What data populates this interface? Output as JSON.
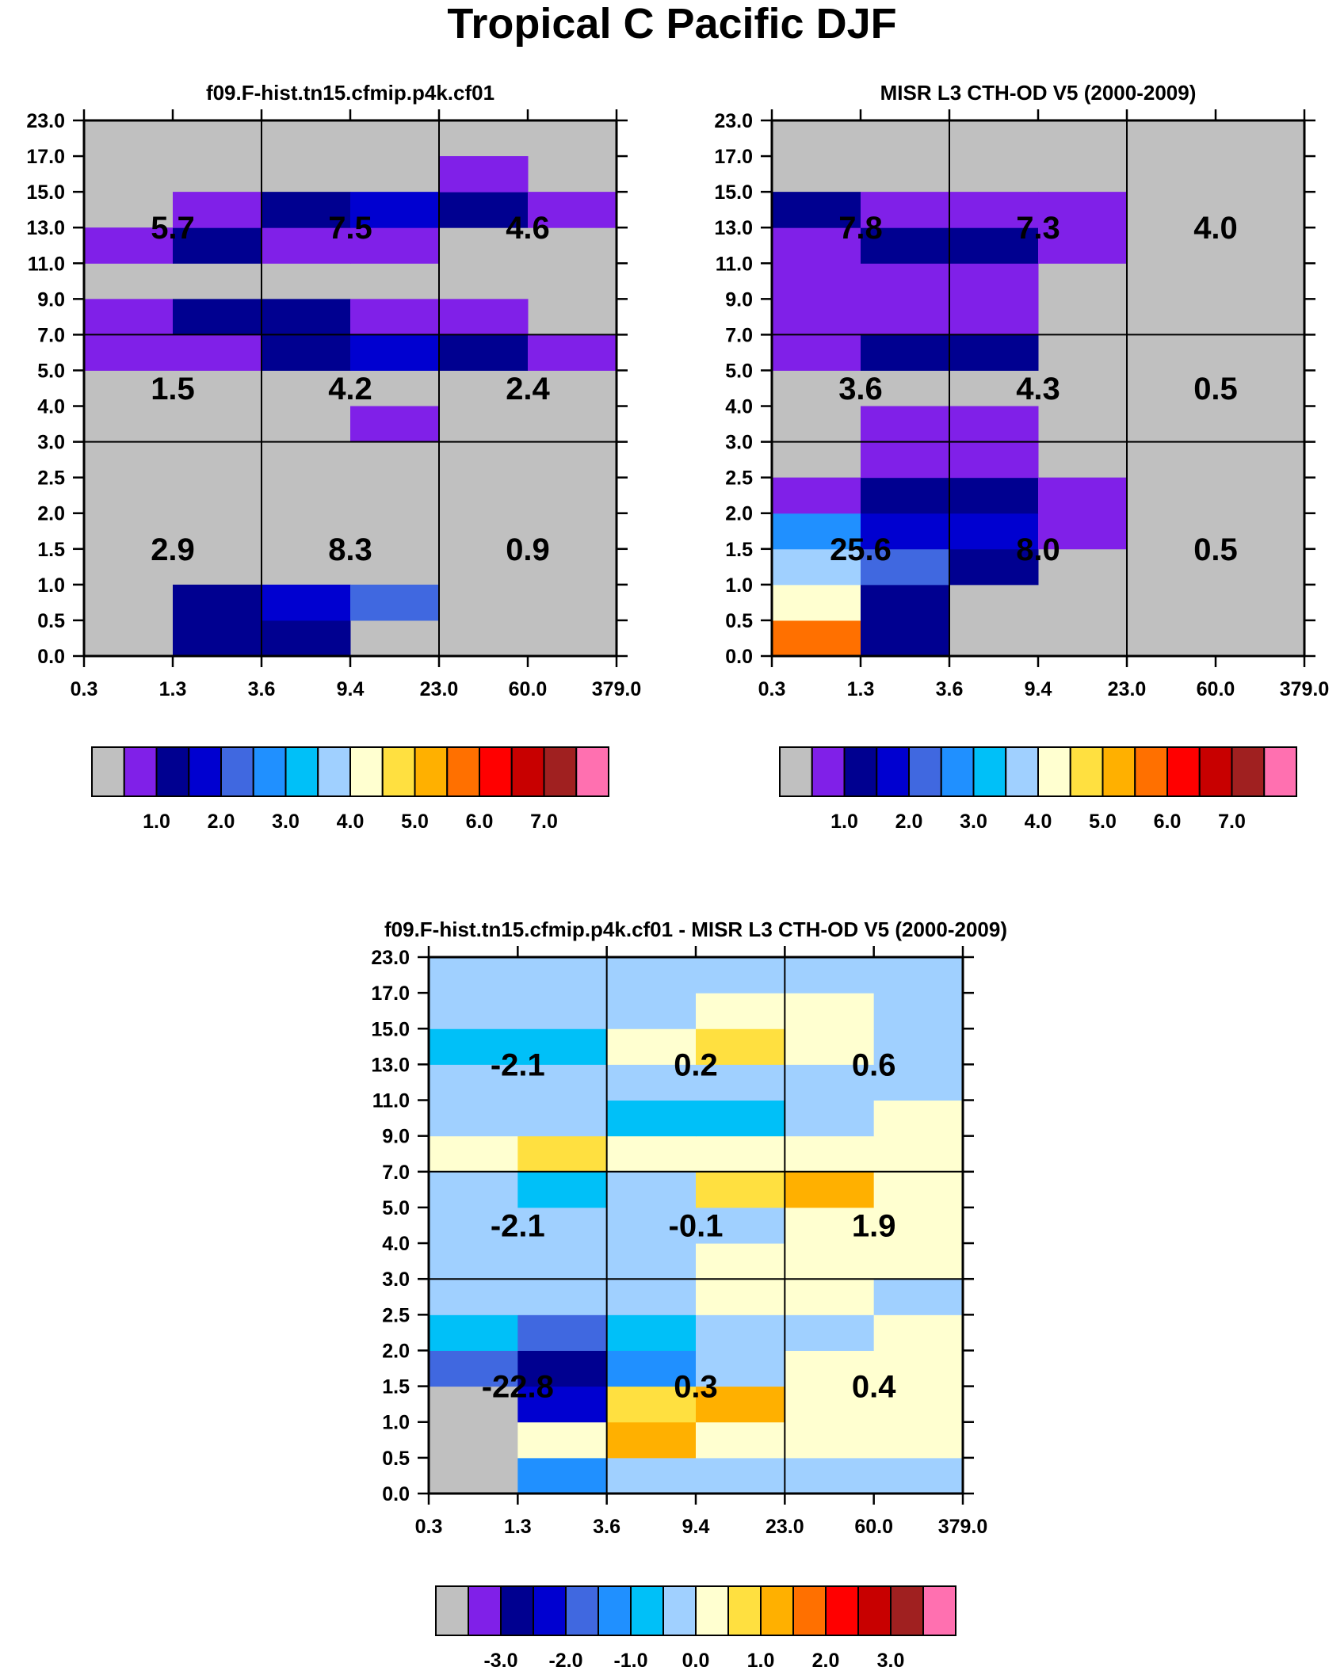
{
  "figure_title": "Tropical C Pacific DJF",
  "chart_data": [
    {
      "type": "heatmap",
      "title": "f09.F-hist.tn15.cfmip.p4k.cf01",
      "x_ticks": [
        "0.3",
        "1.3",
        "3.6",
        "9.4",
        "23.0",
        "60.0",
        "379.0"
      ],
      "y_ticks": [
        "0.0",
        "0.5",
        "1.0",
        "1.5",
        "2.0",
        "2.5",
        "3.0",
        "4.0",
        "5.0",
        "7.0",
        "9.0",
        "11.0",
        "13.0",
        "15.0",
        "17.0",
        "23.0"
      ],
      "grid_rows": [
        [
          null,
          2,
          2,
          null,
          null,
          null
        ],
        [
          null,
          2,
          3,
          4,
          null,
          null
        ],
        [
          null,
          null,
          null,
          null,
          null,
          null
        ],
        [
          null,
          null,
          null,
          null,
          null,
          null
        ],
        [
          null,
          null,
          null,
          null,
          null,
          null
        ],
        [
          null,
          null,
          null,
          null,
          null,
          null
        ],
        [
          null,
          null,
          null,
          1,
          null,
          null
        ],
        [
          null,
          null,
          null,
          null,
          null,
          null
        ],
        [
          1,
          1,
          2,
          3,
          2,
          1
        ],
        [
          1,
          2,
          2,
          1,
          1,
          null
        ],
        [
          null,
          null,
          null,
          null,
          null,
          null
        ],
        [
          1,
          2,
          1,
          1,
          null,
          null
        ],
        [
          null,
          1,
          2,
          3,
          2,
          1
        ],
        [
          null,
          null,
          null,
          null,
          1,
          null
        ],
        [
          null,
          null,
          null,
          null,
          null,
          null
        ]
      ],
      "region_labels": [
        {
          "value": "2.9",
          "col": 0,
          "row": 0
        },
        {
          "value": "8.3",
          "col": 1,
          "row": 0
        },
        {
          "value": "0.9",
          "col": 2,
          "row": 0
        },
        {
          "value": "1.5",
          "col": 0,
          "row": 1
        },
        {
          "value": "4.2",
          "col": 1,
          "row": 1
        },
        {
          "value": "2.4",
          "col": 2,
          "row": 1
        },
        {
          "value": "5.7",
          "col": 0,
          "row": 2
        },
        {
          "value": "7.5",
          "col": 1,
          "row": 2
        },
        {
          "value": "4.6",
          "col": 2,
          "row": 2
        }
      ]
    },
    {
      "type": "heatmap",
      "title": "MISR L3 CTH-OD V5 (2000-2009)",
      "x_ticks": [
        "0.3",
        "1.3",
        "3.6",
        "9.4",
        "23.0",
        "60.0",
        "379.0"
      ],
      "y_ticks": [
        "0.0",
        "0.5",
        "1.0",
        "1.5",
        "2.0",
        "2.5",
        "3.0",
        "4.0",
        "5.0",
        "7.0",
        "9.0",
        "11.0",
        "13.0",
        "15.0",
        "17.0",
        "23.0"
      ],
      "grid_rows": [
        [
          11,
          2,
          null,
          null,
          null,
          null
        ],
        [
          8,
          2,
          null,
          null,
          null,
          null
        ],
        [
          7,
          4,
          2,
          null,
          null,
          null
        ],
        [
          5,
          3,
          3,
          1,
          null,
          null
        ],
        [
          1,
          2,
          2,
          1,
          null,
          null
        ],
        [
          null,
          1,
          1,
          null,
          null,
          null
        ],
        [
          null,
          1,
          1,
          null,
          null,
          null
        ],
        [
          null,
          null,
          null,
          null,
          null,
          null
        ],
        [
          1,
          2,
          2,
          null,
          null,
          null
        ],
        [
          1,
          1,
          1,
          null,
          null,
          null
        ],
        [
          1,
          1,
          1,
          null,
          null,
          null
        ],
        [
          1,
          2,
          2,
          1,
          null,
          null
        ],
        [
          2,
          1,
          1,
          1,
          null,
          null
        ],
        [
          null,
          null,
          null,
          null,
          null,
          null
        ],
        [
          null,
          null,
          null,
          null,
          null,
          null
        ]
      ],
      "region_labels": [
        {
          "value": "25.6",
          "col": 0,
          "row": 0
        },
        {
          "value": "8.0",
          "col": 1,
          "row": 0
        },
        {
          "value": "0.5",
          "col": 2,
          "row": 0
        },
        {
          "value": "3.6",
          "col": 0,
          "row": 1
        },
        {
          "value": "4.3",
          "col": 1,
          "row": 1
        },
        {
          "value": "0.5",
          "col": 2,
          "row": 1
        },
        {
          "value": "7.8",
          "col": 0,
          "row": 2
        },
        {
          "value": "7.3",
          "col": 1,
          "row": 2
        },
        {
          "value": "4.0",
          "col": 2,
          "row": 2
        }
      ]
    },
    {
      "type": "heatmap",
      "title": "f09.F-hist.tn15.cfmip.p4k.cf01 - MISR L3 CTH-OD V5 (2000-2009)",
      "x_ticks": [
        "0.3",
        "1.3",
        "3.6",
        "9.4",
        "23.0",
        "60.0",
        "379.0"
      ],
      "y_ticks": [
        "0.0",
        "0.5",
        "1.0",
        "1.5",
        "2.0",
        "2.5",
        "3.0",
        "4.0",
        "5.0",
        "7.0",
        "9.0",
        "11.0",
        "13.0",
        "15.0",
        "17.0",
        "23.0"
      ],
      "grid_rows": [
        [
          0,
          5,
          7,
          7,
          7,
          7
        ],
        [
          0,
          8,
          10,
          8,
          8,
          8
        ],
        [
          0,
          3,
          9,
          10,
          8,
          8
        ],
        [
          4,
          2,
          5,
          7,
          8,
          8
        ],
        [
          6,
          4,
          6,
          7,
          7,
          8
        ],
        [
          7,
          7,
          7,
          8,
          8,
          7
        ],
        [
          7,
          7,
          7,
          8,
          8,
          8
        ],
        [
          7,
          7,
          7,
          7,
          8,
          8
        ],
        [
          7,
          6,
          7,
          9,
          10,
          8
        ],
        [
          8,
          9,
          8,
          8,
          8,
          8
        ],
        [
          7,
          7,
          6,
          6,
          7,
          8
        ],
        [
          7,
          7,
          7,
          7,
          7,
          7
        ],
        [
          6,
          6,
          8,
          9,
          8,
          7
        ],
        [
          7,
          7,
          7,
          8,
          8,
          7
        ],
        [
          7,
          7,
          7,
          7,
          7,
          7
        ]
      ],
      "region_labels": [
        {
          "value": "-22.8",
          "col": 0,
          "row": 0
        },
        {
          "value": "0.3",
          "col": 1,
          "row": 0
        },
        {
          "value": "0.4",
          "col": 2,
          "row": 0
        },
        {
          "value": "-2.1",
          "col": 0,
          "row": 1
        },
        {
          "value": "-0.1",
          "col": 1,
          "row": 1
        },
        {
          "value": "1.9",
          "col": 2,
          "row": 1
        },
        {
          "value": "-2.1",
          "col": 0,
          "row": 2
        },
        {
          "value": "0.2",
          "col": 1,
          "row": 2
        },
        {
          "value": "0.6",
          "col": 2,
          "row": 2
        }
      ]
    }
  ],
  "colorbars": [
    {
      "labels": [
        "1.0",
        "2.0",
        "3.0",
        "4.0",
        "5.0",
        "6.0",
        "7.0"
      ]
    },
    {
      "labels": [
        "1.0",
        "2.0",
        "3.0",
        "4.0",
        "5.0",
        "6.0",
        "7.0"
      ]
    },
    {
      "labels": [
        "-3.0",
        "-2.0",
        "-1.0",
        "0.0",
        "1.0",
        "2.0",
        "3.0"
      ]
    }
  ],
  "palette": [
    "#c0c0c0",
    "#8020e8",
    "#000090",
    "#0000d0",
    "#4068e0",
    "#2090ff",
    "#00c0f8",
    "#a0d0ff",
    "#ffffd0",
    "#ffe040",
    "#ffb000",
    "#ff7000",
    "#ff0000",
    "#c80000",
    "#a02020",
    "#ff70b0"
  ]
}
